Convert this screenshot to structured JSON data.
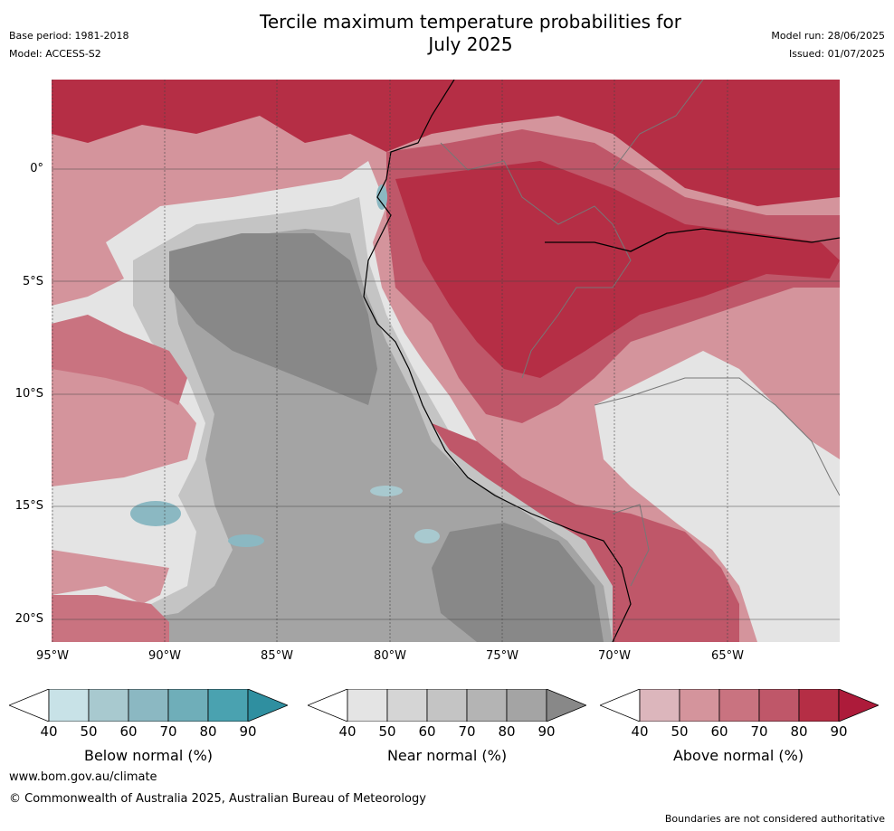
{
  "header": {
    "title_line1": "Tercile maximum temperature probabilities for",
    "title_line2": "July 2025",
    "base_period": "Base period: 1981-2018",
    "model": "Model: ACCESS-S2",
    "model_run": "Model run: 28/06/2025",
    "issued": "Issued: 01/07/2025"
  },
  "map": {
    "lat_labels": [
      "0°",
      "5°S",
      "10°S",
      "15°S",
      "20°S"
    ],
    "lon_labels": [
      "95°W",
      "90°W",
      "85°W",
      "80°W",
      "75°W",
      "70°W",
      "65°W"
    ],
    "colors": {
      "above": [
        "#dcb6bc",
        "#d4949c",
        "#c97380",
        "#bf5769",
        "#b52e45",
        "#ad1b3a"
      ],
      "near": [
        "#e4e4e4",
        "#d5d5d5",
        "#c4c4c4",
        "#b4b4b4",
        "#a4a4a4",
        "#888888"
      ],
      "below": [
        "#c8e2e7",
        "#a8c9cf",
        "#8bb8c2",
        "#6faeb9",
        "#4aa2b0",
        "#2f8fa0"
      ]
    }
  },
  "colorbars": [
    {
      "label": "Below normal (%)",
      "ticks": [
        "40",
        "50",
        "60",
        "70",
        "80",
        "90"
      ],
      "colors": [
        "#ffffff",
        "#c8e2e7",
        "#a8c9cf",
        "#8bb8c2",
        "#6faeb9",
        "#4aa2b0",
        "#2f8fa0"
      ]
    },
    {
      "label": "Near normal (%)",
      "ticks": [
        "40",
        "50",
        "60",
        "70",
        "80",
        "90"
      ],
      "colors": [
        "#ffffff",
        "#e4e4e4",
        "#d5d5d5",
        "#c4c4c4",
        "#b4b4b4",
        "#a4a4a4",
        "#888888"
      ]
    },
    {
      "label": "Above normal (%)",
      "ticks": [
        "40",
        "50",
        "60",
        "70",
        "80",
        "90"
      ],
      "colors": [
        "#ffffff",
        "#dcb6bc",
        "#d4949c",
        "#c97380",
        "#bf5769",
        "#b52e45",
        "#ad1b3a"
      ]
    }
  ],
  "footer": {
    "url": "www.bom.gov.au/climate",
    "copyright": "© Commonwealth of Australia 2025, Australian Bureau of Meteorology",
    "disclaimer": "Boundaries are not considered authoritative"
  }
}
